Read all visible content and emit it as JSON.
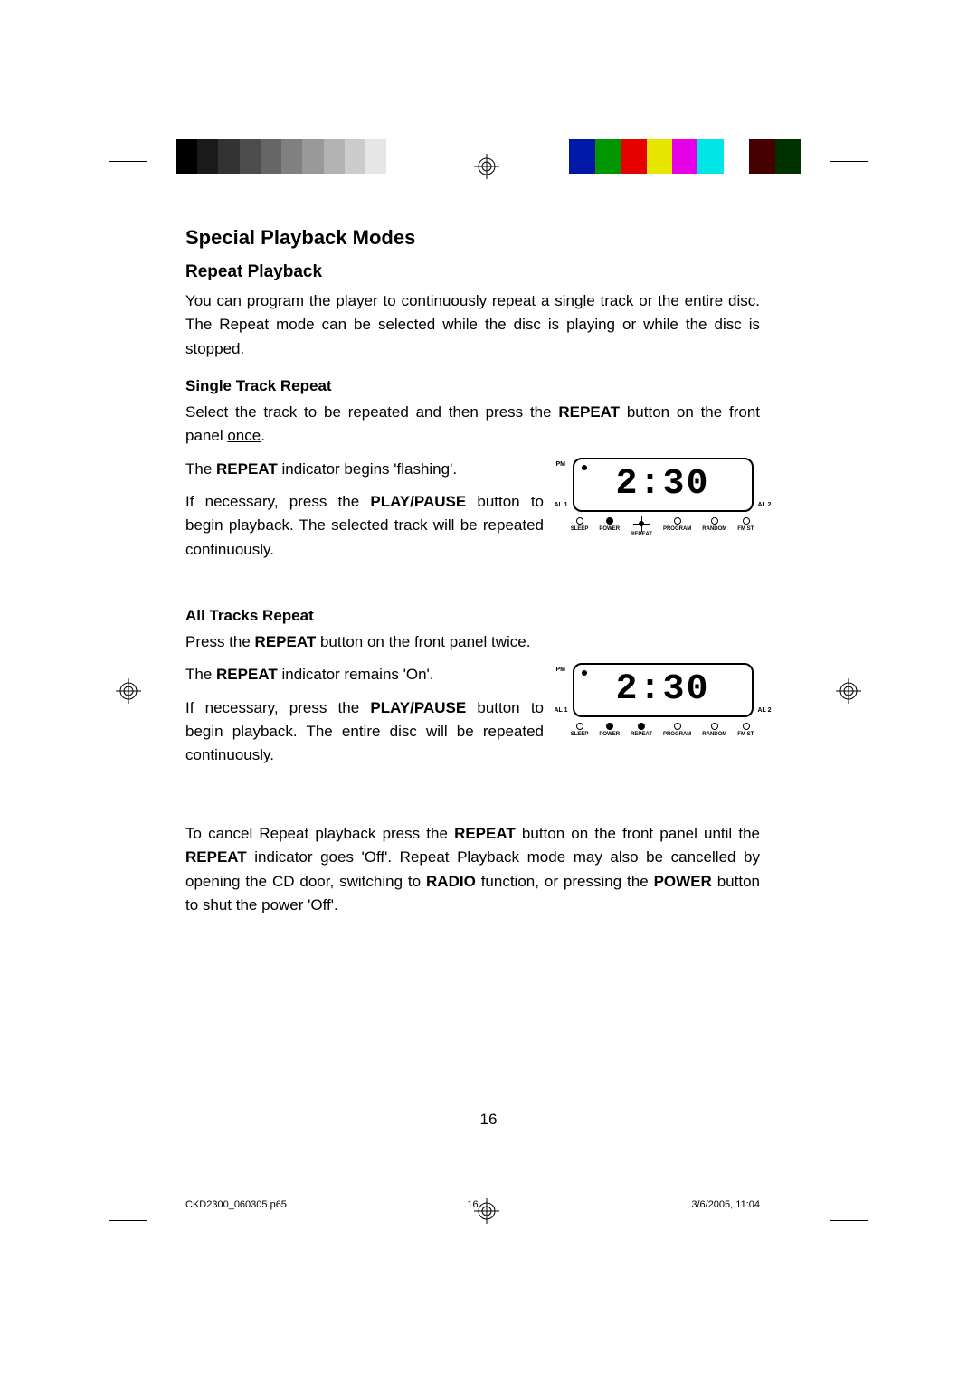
{
  "colorbar": {
    "grays": [
      "#000000",
      "#1a1a1a",
      "#333333",
      "#4d4d4d",
      "#666666",
      "#808080",
      "#999999",
      "#b3b3b3",
      "#cccccc",
      "#e6e6e6",
      "#ffffff"
    ],
    "colors": [
      "#0018a8",
      "#009600",
      "#e60000",
      "#e6e600",
      "#e600e6",
      "#00e6e6",
      "#ffffff",
      "#460000",
      "#003200"
    ]
  },
  "page": {
    "title": "Special Playback Modes",
    "repeat_heading": "Repeat Playback",
    "repeat_intro": "You can program the player to continuously repeat a single track or the entire disc. The Repeat mode can be selected while the disc is playing or while the disc is stopped.",
    "single_heading": "Single Track Repeat",
    "single_p1a": "Select the track to be repeated and then press the ",
    "single_p1b": "REPEAT",
    "single_p1c": " button on the front panel ",
    "single_p1d": "once",
    "single_p1e": ".",
    "single_p2a": "The ",
    "single_p2b": "REPEAT",
    "single_p2c": " indicator begins 'flashing'.",
    "single_p3a": "If necessary, press the ",
    "single_p3b": "PLAY/PAUSE",
    "single_p3c": " button to begin playback. The selected track will be repeated continuously.",
    "all_heading": "All Tracks Repeat",
    "all_p1a": "Press the ",
    "all_p1b": "REPEAT",
    "all_p1c": " button on the front panel ",
    "all_p1d": "twice",
    "all_p1e": ".",
    "all_p2a": "The ",
    "all_p2b": "REPEAT",
    "all_p2c": " indicator remains 'On'.",
    "all_p3a": "If necessary, press the ",
    "all_p3b": "PLAY/PAUSE",
    "all_p3c": " button to begin playback. The entire disc will be repeated continuously.",
    "cancel_a": "To cancel Repeat playback press the ",
    "cancel_b": "REPEAT",
    "cancel_c": " button on the front panel until the ",
    "cancel_d": "REPEAT",
    "cancel_e": " indicator goes 'Off'. Repeat Playback mode may also be cancelled by opening the CD door, switching to ",
    "cancel_f": "RADIO",
    "cancel_g": " function, or pressing the ",
    "cancel_h": "POWER",
    "cancel_i": " button to shut the power 'Off'.",
    "page_number": "16"
  },
  "lcd": {
    "time": "2:30",
    "pm": "PM",
    "al1": "AL 1",
    "al2": "AL 2",
    "leds": {
      "sleep": "SLEEP",
      "power": "POWER",
      "repeat": "REPEAT",
      "program": "PROGRAM",
      "random": "RANDOM",
      "fmst": "FM ST."
    }
  },
  "footer": {
    "file": "CKD2300_060305.p65",
    "page": "16",
    "date": "3/6/2005, 11:04"
  }
}
